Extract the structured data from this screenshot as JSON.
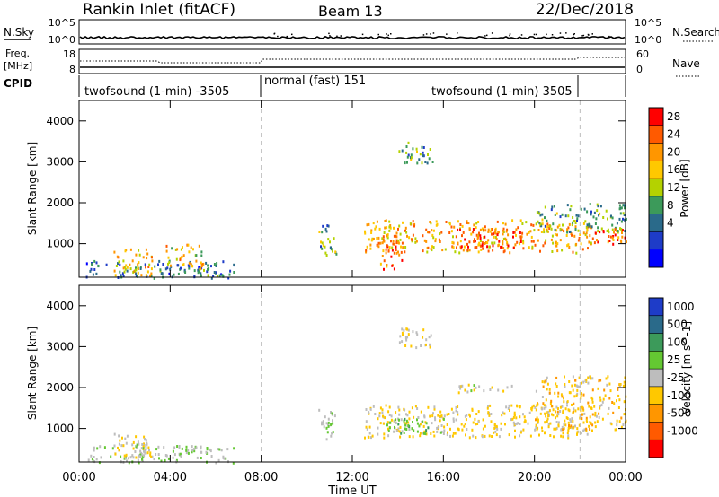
{
  "header": {
    "station": "Rankin Inlet (fitACF)",
    "beam": "Beam 13",
    "date": "22/Dec/2018"
  },
  "noise_panel": {
    "left_label": "N.Sky",
    "right_label": "N.Search",
    "left_ticks": [
      "10^5",
      "10^0"
    ],
    "right_ticks": [
      "10^5",
      "10^0"
    ]
  },
  "freq_panel": {
    "left_label_line1": "Freq.",
    "left_label_line2": "[MHz]",
    "right_label": "Nave",
    "left_ticks": [
      "18",
      "8"
    ],
    "right_ticks": [
      "60",
      "0"
    ]
  },
  "cpid_panel": {
    "label": "CPID",
    "segments": [
      {
        "text": "twofsound (1-min) -3505",
        "start_hour": 0,
        "end_hour": 8
      },
      {
        "text": "normal (fast) 151",
        "start_hour": 8,
        "end_hour": 22
      },
      {
        "text": "twofsound (1-min) 3505",
        "start_hour": 8,
        "end_hour": 22
      }
    ]
  },
  "power_colorbar": {
    "label": "Power [dB]",
    "ticks": [
      "28",
      "24",
      "20",
      "16",
      "12",
      "8",
      "4"
    ],
    "colors": [
      "#ff0000",
      "#ff5a00",
      "#ff9600",
      "#ffc800",
      "#b4d200",
      "#3c9a5a",
      "#2a6a8a",
      "#1e3cc8",
      "#0000ff"
    ]
  },
  "velocity_colorbar": {
    "label": "Velocity [m s^-1]",
    "ticks": [
      "1000",
      "500",
      "100",
      "25",
      "-25",
      "-100",
      "-500",
      "-1000"
    ],
    "colors": [
      "#1e3cc8",
      "#2a6a8a",
      "#3c9a5a",
      "#64c832",
      "#bdbdbd",
      "#ffc800",
      "#ff9600",
      "#ff5a00",
      "#ff0000"
    ]
  },
  "axes": {
    "ylabel": "Slant Range [km]",
    "xlabel": "Time UT",
    "y_ticks": [
      "1000",
      "2000",
      "3000",
      "4000"
    ],
    "x_ticks": [
      "00:00",
      "04:00",
      "08:00",
      "12:00",
      "16:00",
      "20:00",
      "00:00"
    ]
  },
  "chart_data": [
    {
      "type": "heatmap",
      "title": "Power",
      "xlabel": "",
      "ylabel": "Slant Range [km]",
      "x_unit": "hours UT",
      "xlim": [
        0,
        24
      ],
      "ylim": [
        180,
        4500
      ],
      "mode_change_markers_hours": [
        8,
        22
      ],
      "regions": [
        {
          "x": [
            0.3,
            6.8
          ],
          "y": [
            180,
            600
          ],
          "value_db": 8
        },
        {
          "x": [
            1.5,
            3.2
          ],
          "y": [
            250,
            900
          ],
          "value_db": 22
        },
        {
          "x": [
            3.8,
            5.5
          ],
          "y": [
            300,
            1000
          ],
          "value_db": 20
        },
        {
          "x": [
            10.5,
            11.3
          ],
          "y": [
            700,
            1500
          ],
          "value_db": 12
        },
        {
          "x": [
            12.5,
            22.5
          ],
          "y": [
            800,
            1600
          ],
          "value_db": 22
        },
        {
          "x": [
            13.2,
            14.2
          ],
          "y": [
            400,
            1100
          ],
          "value_db": 28
        },
        {
          "x": [
            16.5,
            19.5
          ],
          "y": [
            900,
            1400
          ],
          "value_db": 28
        },
        {
          "x": [
            20,
            24
          ],
          "y": [
            1300,
            2000
          ],
          "value_db": 12
        },
        {
          "x": [
            22.5,
            24
          ],
          "y": [
            900,
            1400
          ],
          "value_db": 28
        },
        {
          "x": [
            14,
            15.5
          ],
          "y": [
            3000,
            3500
          ],
          "value_db": 12
        }
      ]
    },
    {
      "type": "heatmap",
      "title": "Velocity",
      "xlabel": "Time UT",
      "ylabel": "Slant Range [km]",
      "x_unit": "hours UT",
      "xlim": [
        0,
        24
      ],
      "ylim": [
        180,
        4500
      ],
      "mode_change_markers_hours": [
        8,
        22
      ],
      "regions": [
        {
          "x": [
            0.3,
            6.8
          ],
          "y": [
            180,
            600
          ],
          "value_ms": 100
        },
        {
          "x": [
            1.5,
            3.2
          ],
          "y": [
            300,
            900
          ],
          "value_ms": -100
        },
        {
          "x": [
            2.5,
            3.0
          ],
          "y": [
            500,
            800
          ],
          "value_ms": 0
        },
        {
          "x": [
            10.5,
            11.3
          ],
          "y": [
            700,
            1500
          ],
          "value_ms": 100
        },
        {
          "x": [
            12.5,
            22.5
          ],
          "y": [
            800,
            1600
          ],
          "value_ms": -200
        },
        {
          "x": [
            13.5,
            16
          ],
          "y": [
            900,
            1300
          ],
          "value_ms": 300
        },
        {
          "x": [
            16.5,
            19
          ],
          "y": [
            1900,
            2100
          ],
          "value_ms": 0
        },
        {
          "x": [
            20,
            24
          ],
          "y": [
            1000,
            2300
          ],
          "value_ms": -300
        },
        {
          "x": [
            14,
            15.5
          ],
          "y": [
            3000,
            3500
          ],
          "value_ms": -100
        }
      ]
    }
  ]
}
